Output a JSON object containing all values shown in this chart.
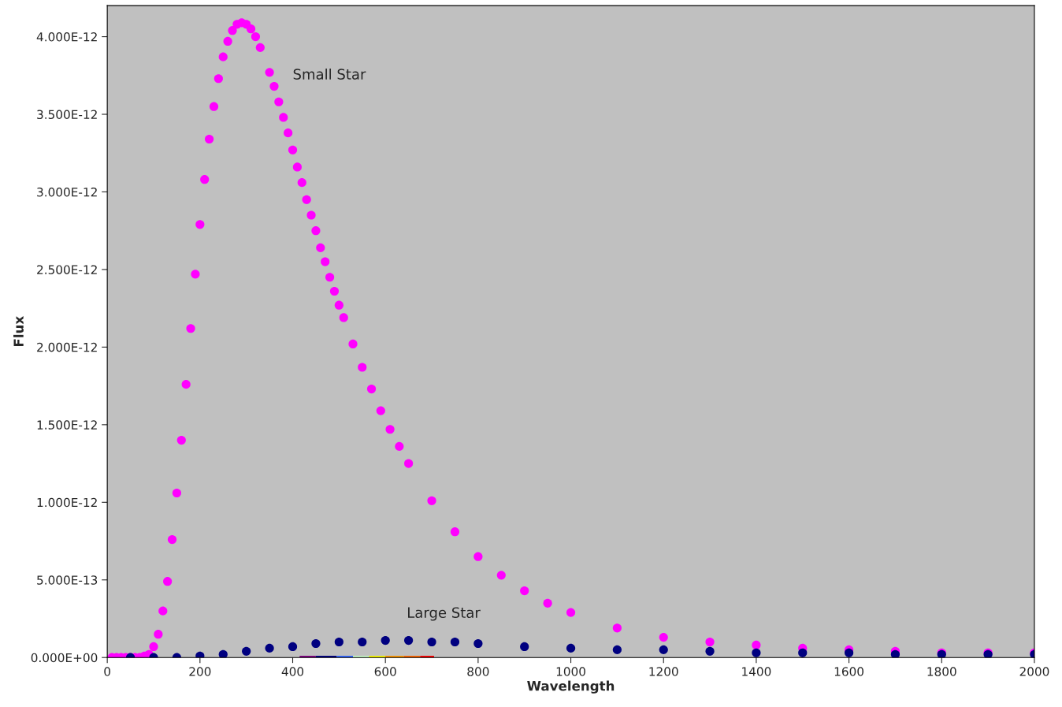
{
  "chart_data": {
    "type": "scatter",
    "xlabel": "Wavelength",
    "ylabel": "Flux",
    "marker": "circle",
    "grid": false,
    "series": [
      {
        "color": "#ff00ff",
        "x": [
          10,
          20,
          30,
          40,
          50,
          60,
          70,
          80,
          90,
          100,
          110,
          120,
          130,
          140,
          150,
          160,
          170,
          180,
          190,
          200,
          210,
          220,
          230,
          240,
          250,
          260,
          270,
          280,
          290,
          300,
          310,
          320,
          330,
          350,
          360,
          370,
          380,
          390,
          400,
          410,
          420,
          430,
          440,
          450,
          460,
          470,
          480,
          490,
          500,
          510,
          530,
          550,
          570,
          590,
          610,
          630,
          650,
          700,
          750,
          800,
          850,
          900,
          950,
          1000,
          1100,
          1200,
          1300,
          1400,
          1500,
          1600,
          1700,
          1800,
          1900,
          2000
        ],
        "values": [
          0,
          0,
          0,
          0,
          0,
          0,
          0,
          1e-14,
          2e-14,
          7e-14,
          1.5e-13,
          3e-13,
          4.9e-13,
          7.6e-13,
          1.06e-12,
          1.4e-12,
          1.76e-12,
          2.12e-12,
          2.47e-12,
          2.79e-12,
          3.08e-12,
          3.34e-12,
          3.55e-12,
          3.73e-12,
          3.87e-12,
          3.97e-12,
          4.04e-12,
          4.08e-12,
          4.09e-12,
          4.08e-12,
          4.05e-12,
          4e-12,
          3.93e-12,
          3.77e-12,
          3.68e-12,
          3.58e-12,
          3.48e-12,
          3.38e-12,
          3.27e-12,
          3.16e-12,
          3.06e-12,
          2.95e-12,
          2.85e-12,
          2.75e-12,
          2.64e-12,
          2.55e-12,
          2.45e-12,
          2.36e-12,
          2.27e-12,
          2.19e-12,
          2.02e-12,
          1.87e-12,
          1.73e-12,
          1.59e-12,
          1.47e-12,
          1.36e-12,
          1.25e-12,
          1.01e-12,
          8.1e-13,
          6.5e-13,
          5.3e-13,
          4.3e-13,
          3.5e-13,
          2.9e-13,
          1.9e-13,
          1.3e-13,
          1e-13,
          8e-14,
          6e-14,
          5e-14,
          4e-14,
          3e-14,
          3e-14,
          3e-14
        ]
      },
      {
        "color": "#000080",
        "x": [
          50,
          100,
          150,
          200,
          250,
          300,
          350,
          400,
          450,
          500,
          550,
          600,
          650,
          700,
          750,
          800,
          900,
          1000,
          1100,
          1200,
          1300,
          1400,
          1500,
          1600,
          1700,
          1800,
          1900,
          2000
        ],
        "values": [
          0,
          0,
          0,
          1e-14,
          2e-14,
          4e-14,
          6e-14,
          7e-14,
          9e-14,
          1e-13,
          1e-13,
          1.1e-13,
          1.1e-13,
          1e-13,
          1e-13,
          9e-14,
          7e-14,
          6e-14,
          5e-14,
          5e-14,
          4e-14,
          3e-14,
          3e-14,
          3e-14,
          2e-14,
          2e-14,
          2e-14,
          2e-14
        ]
      }
    ],
    "annotations": [
      "Small Star",
      "Large Star"
    ],
    "xlim": [
      0,
      2000
    ],
    "xticks": [
      0,
      200,
      400,
      600,
      800,
      1000,
      1200,
      1400,
      1600,
      1800,
      2000
    ],
    "ylim": [
      0,
      4.2e-12
    ],
    "yticks": [
      {
        "value": 0,
        "label": "0.000E+00"
      },
      {
        "value": 5e-13,
        "label": "5.000E-13"
      },
      {
        "value": 1e-12,
        "label": "1.000E-12"
      },
      {
        "value": 1.5e-12,
        "label": "1.500E-12"
      },
      {
        "value": 2e-12,
        "label": "2.000E-12"
      },
      {
        "value": 2.5e-12,
        "label": "2.500E-12"
      },
      {
        "value": 3e-12,
        "label": "3.000E-12"
      },
      {
        "value": 3.5e-12,
        "label": "3.500E-12"
      },
      {
        "value": 4e-12,
        "label": "4.000E-12"
      }
    ]
  }
}
